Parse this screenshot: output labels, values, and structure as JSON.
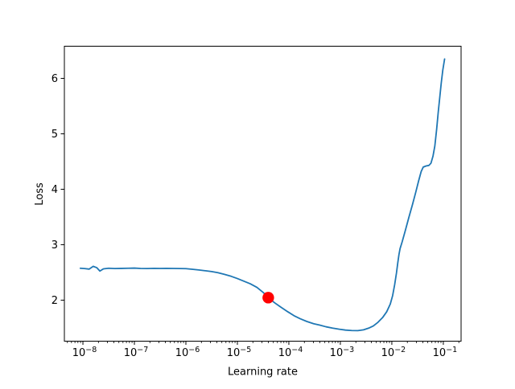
{
  "figure": {
    "background": "#ffffff",
    "title": ""
  },
  "chart_data": {
    "type": "line",
    "title": "",
    "xlabel": "Learning rate",
    "ylabel": "Loss",
    "x_scale": "log",
    "grid": false,
    "legend": null,
    "xlim_log10": [
      -8.36,
      -0.655
    ],
    "ylim": [
      1.26,
      6.58
    ],
    "x_tick_base": "10",
    "x_major_ticks_log10": [
      -8,
      -7,
      -6,
      -5,
      -4,
      -3,
      -2,
      -1
    ],
    "x_tick_exponents": [
      -8,
      -7,
      -6,
      -5,
      -4,
      -3,
      -2,
      -1
    ],
    "y_ticks": [
      2,
      3,
      4,
      5,
      6
    ],
    "line_color": "#1f77b4",
    "axis_color": "#000000",
    "series": [
      {
        "name": "loss-curve",
        "color": "#1f77b4",
        "points_log10lr_loss": [
          [
            -8.05,
            2.575
          ],
          [
            -7.97,
            2.57
          ],
          [
            -7.88,
            2.56
          ],
          [
            -7.8,
            2.61
          ],
          [
            -7.73,
            2.585
          ],
          [
            -7.67,
            2.525
          ],
          [
            -7.6,
            2.565
          ],
          [
            -7.5,
            2.575
          ],
          [
            -7.38,
            2.57
          ],
          [
            -7.25,
            2.573
          ],
          [
            -7.12,
            2.575
          ],
          [
            -7.0,
            2.578
          ],
          [
            -6.88,
            2.572
          ],
          [
            -6.75,
            2.57
          ],
          [
            -6.62,
            2.574
          ],
          [
            -6.5,
            2.572
          ],
          [
            -6.38,
            2.574
          ],
          [
            -6.25,
            2.572
          ],
          [
            -6.12,
            2.57
          ],
          [
            -6.0,
            2.568
          ],
          [
            -5.88,
            2.558
          ],
          [
            -5.75,
            2.545
          ],
          [
            -5.62,
            2.53
          ],
          [
            -5.5,
            2.515
          ],
          [
            -5.38,
            2.495
          ],
          [
            -5.25,
            2.465
          ],
          [
            -5.12,
            2.43
          ],
          [
            -5.0,
            2.39
          ],
          [
            -4.88,
            2.345
          ],
          [
            -4.75,
            2.295
          ],
          [
            -4.62,
            2.23
          ],
          [
            -4.5,
            2.14
          ],
          [
            -4.4,
            2.045
          ],
          [
            -4.28,
            1.955
          ],
          [
            -4.15,
            1.87
          ],
          [
            -4.02,
            1.79
          ],
          [
            -3.9,
            1.72
          ],
          [
            -3.78,
            1.665
          ],
          [
            -3.65,
            1.615
          ],
          [
            -3.52,
            1.575
          ],
          [
            -3.4,
            1.55
          ],
          [
            -3.28,
            1.52
          ],
          [
            -3.15,
            1.495
          ],
          [
            -3.02,
            1.475
          ],
          [
            -2.9,
            1.46
          ],
          [
            -2.78,
            1.452
          ],
          [
            -2.66,
            1.45
          ],
          [
            -2.55,
            1.465
          ],
          [
            -2.45,
            1.495
          ],
          [
            -2.36,
            1.535
          ],
          [
            -2.27,
            1.6
          ],
          [
            -2.18,
            1.685
          ],
          [
            -2.1,
            1.79
          ],
          [
            -2.03,
            1.93
          ],
          [
            -1.985,
            2.08
          ],
          [
            -1.945,
            2.28
          ],
          [
            -1.91,
            2.49
          ],
          [
            -1.885,
            2.67
          ],
          [
            -1.862,
            2.82
          ],
          [
            -1.84,
            2.93
          ],
          [
            -1.8,
            3.05
          ],
          [
            -1.74,
            3.25
          ],
          [
            -1.67,
            3.49
          ],
          [
            -1.6,
            3.72
          ],
          [
            -1.54,
            3.93
          ],
          [
            -1.48,
            4.15
          ],
          [
            -1.43,
            4.32
          ],
          [
            -1.39,
            4.4
          ],
          [
            -1.335,
            4.42
          ],
          [
            -1.28,
            4.43
          ],
          [
            -1.24,
            4.47
          ],
          [
            -1.2,
            4.6
          ],
          [
            -1.165,
            4.78
          ],
          [
            -1.13,
            5.08
          ],
          [
            -1.1,
            5.38
          ],
          [
            -1.07,
            5.65
          ],
          [
            -1.04,
            5.92
          ],
          [
            -1.01,
            6.15
          ],
          [
            -0.975,
            6.35
          ]
        ]
      }
    ],
    "marker": {
      "name": "suggested-lr-point",
      "color": "#ff0000",
      "log10_lr": -4.4,
      "lr": 4e-05,
      "loss": 2.045
    }
  }
}
